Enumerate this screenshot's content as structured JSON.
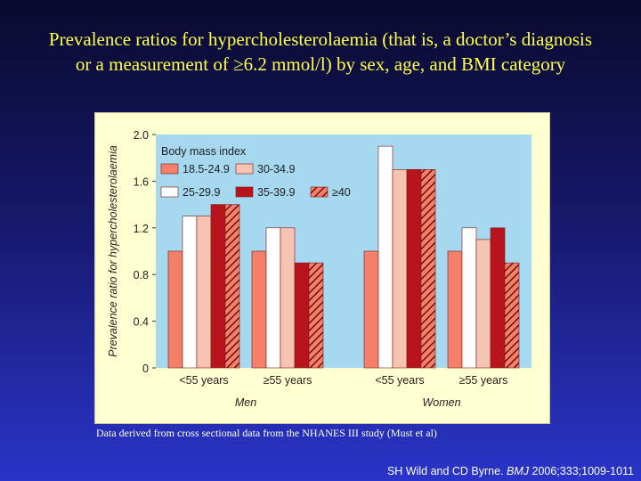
{
  "slide": {
    "title_line1": "Prevalence ratios for hypercholesterolaemia (that is, a doctor’s diagnosis",
    "title_line2": "or a measurement of ≥6.2 mmol/l) by sex, age, and BMI category",
    "footnote": "Data derived from cross sectional data from the NHANES III study (Must et al)",
    "citation_authors": "SH Wild and CD Byrne.",
    "citation_journal": "BMJ",
    "citation_ref": "2006;333;1009-1011"
  },
  "colors": {
    "plot_bg": "#a6d8f0",
    "frame_bg": "#ffffd2",
    "bmi_18_5_24_9": "#f4806a",
    "bmi_25_29_9": "#ffffff",
    "bmi_30_34_9": "#f7c4b4",
    "bmi_35_39_9": "#b8141e",
    "bmi_40_plus": "#f4806a",
    "hatch": "#6a1010"
  },
  "chart_data": {
    "type": "bar",
    "ylabel": "Prevalence ratio for hypercholesterolaemia",
    "ylim": [
      0,
      2.0
    ],
    "yticks": [
      "0",
      "0.4",
      "0.8",
      "1.2",
      "1.6",
      "2.0"
    ],
    "grid": false,
    "legend_title": "Body mass index",
    "legend_position": "top-left",
    "groups": [
      {
        "sex": "Men",
        "categories": [
          "<55 years",
          "≥55 years"
        ]
      },
      {
        "sex": "Women",
        "categories": [
          "<55 years",
          "≥55 years"
        ]
      }
    ],
    "categories": [
      "Men <55 years",
      "Men ≥55 years",
      "Women <55 years",
      "Women ≥55 years"
    ],
    "series": [
      {
        "name": "18.5-24.9",
        "values": [
          1.0,
          1.0,
          1.0,
          1.0
        ]
      },
      {
        "name": "25-29.9",
        "values": [
          1.3,
          1.2,
          1.9,
          1.2
        ]
      },
      {
        "name": "30-34.9",
        "values": [
          1.3,
          1.2,
          1.7,
          1.1
        ]
      },
      {
        "name": "35-39.9",
        "values": [
          1.4,
          0.9,
          1.7,
          1.2
        ]
      },
      {
        "name": "≥40",
        "values": [
          1.4,
          0.9,
          1.7,
          0.9
        ]
      }
    ]
  }
}
